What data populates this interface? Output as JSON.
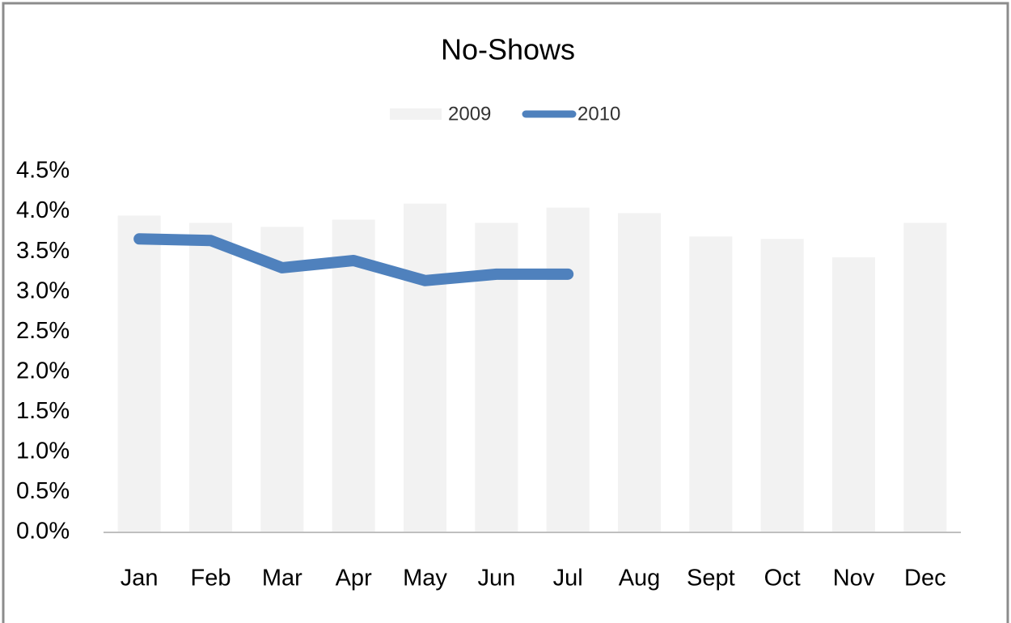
{
  "chart_data": {
    "type": "combo",
    "title": "No-Shows",
    "categories": [
      "Jan",
      "Feb",
      "Mar",
      "Apr",
      "May",
      "Jun",
      "Jul",
      "Aug",
      "Sept",
      "Oct",
      "Nov",
      "Dec"
    ],
    "series": [
      {
        "name": "2009",
        "type": "bar",
        "color": "#f2f2f2",
        "values": [
          3.95,
          3.86,
          3.81,
          3.9,
          4.1,
          3.86,
          4.05,
          3.98,
          3.69,
          3.66,
          3.43,
          3.86
        ]
      },
      {
        "name": "2010",
        "type": "line",
        "color": "#4f81bd",
        "values": [
          3.66,
          3.64,
          3.3,
          3.39,
          3.14,
          3.22,
          3.22,
          null,
          null,
          null,
          null,
          null
        ]
      }
    ],
    "ylim": [
      0,
      4.5
    ],
    "yticks": [
      {
        "value": 0,
        "label": "0.0%"
      },
      {
        "value": 0.5,
        "label": "0.5%"
      },
      {
        "value": 1,
        "label": "1.0%"
      },
      {
        "value": 1.5,
        "label": "1.5%"
      },
      {
        "value": 2,
        "label": "2.0%"
      },
      {
        "value": 2.5,
        "label": "2.5%"
      },
      {
        "value": 3,
        "label": "3.0%"
      },
      {
        "value": 3.5,
        "label": "3.5%"
      },
      {
        "value": 4,
        "label": "4.0%"
      },
      {
        "value": 4.5,
        "label": "4.5%"
      }
    ],
    "grid": false,
    "legend": "top"
  }
}
